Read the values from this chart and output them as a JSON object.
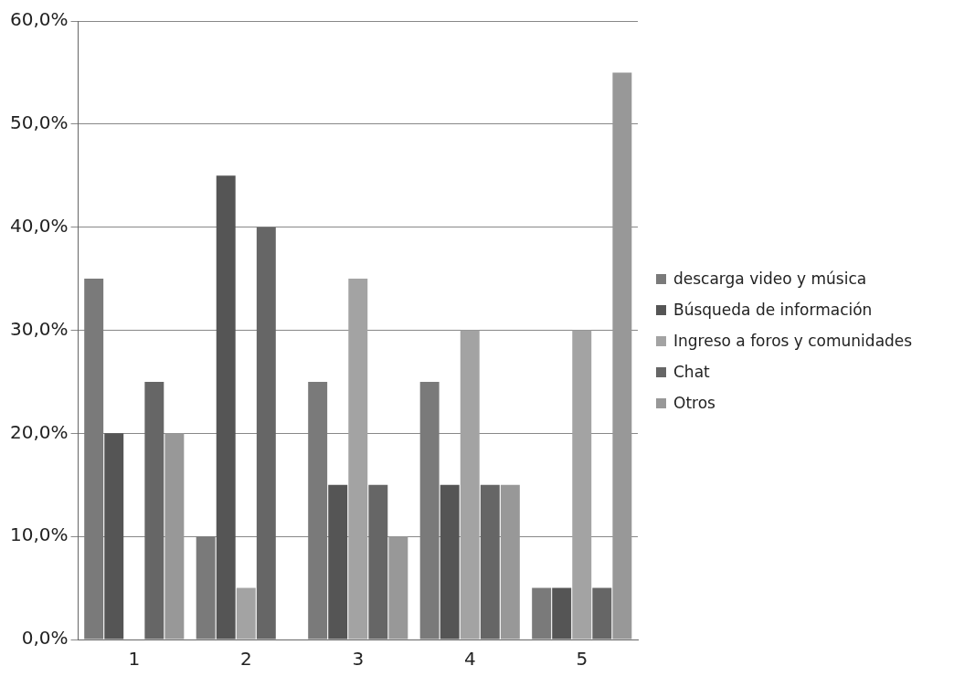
{
  "chart_data": {
    "type": "bar",
    "categories": [
      "1",
      "2",
      "3",
      "4",
      "5"
    ],
    "series": [
      {
        "name": "descarga video y música",
        "color": "#7a7a7a",
        "values": [
          35,
          10,
          25,
          25,
          5
        ]
      },
      {
        "name": "Búsqueda de información",
        "color": "#555555",
        "values": [
          20,
          45,
          15,
          15,
          5
        ]
      },
      {
        "name": "Ingreso a foros y comunidades",
        "color": "#a3a3a3",
        "values": [
          0,
          5,
          35,
          30,
          30
        ]
      },
      {
        "name": "Chat",
        "color": "#666666",
        "values": [
          25,
          40,
          15,
          15,
          5
        ]
      },
      {
        "name": "Otros",
        "color": "#989898",
        "values": [
          20,
          0,
          10,
          15,
          55
        ]
      }
    ],
    "ylim": [
      0,
      60
    ],
    "yticks": [
      {
        "value": 0,
        "label": "0,0%"
      },
      {
        "value": 10,
        "label": "10,0%"
      },
      {
        "value": 20,
        "label": "20,0%"
      },
      {
        "value": 30,
        "label": "30,0%"
      },
      {
        "value": 40,
        "label": "40,0%"
      },
      {
        "value": 50,
        "label": "50,0%"
      },
      {
        "value": 60,
        "label": "60,0%"
      }
    ],
    "grid": "y",
    "legend": "right"
  }
}
